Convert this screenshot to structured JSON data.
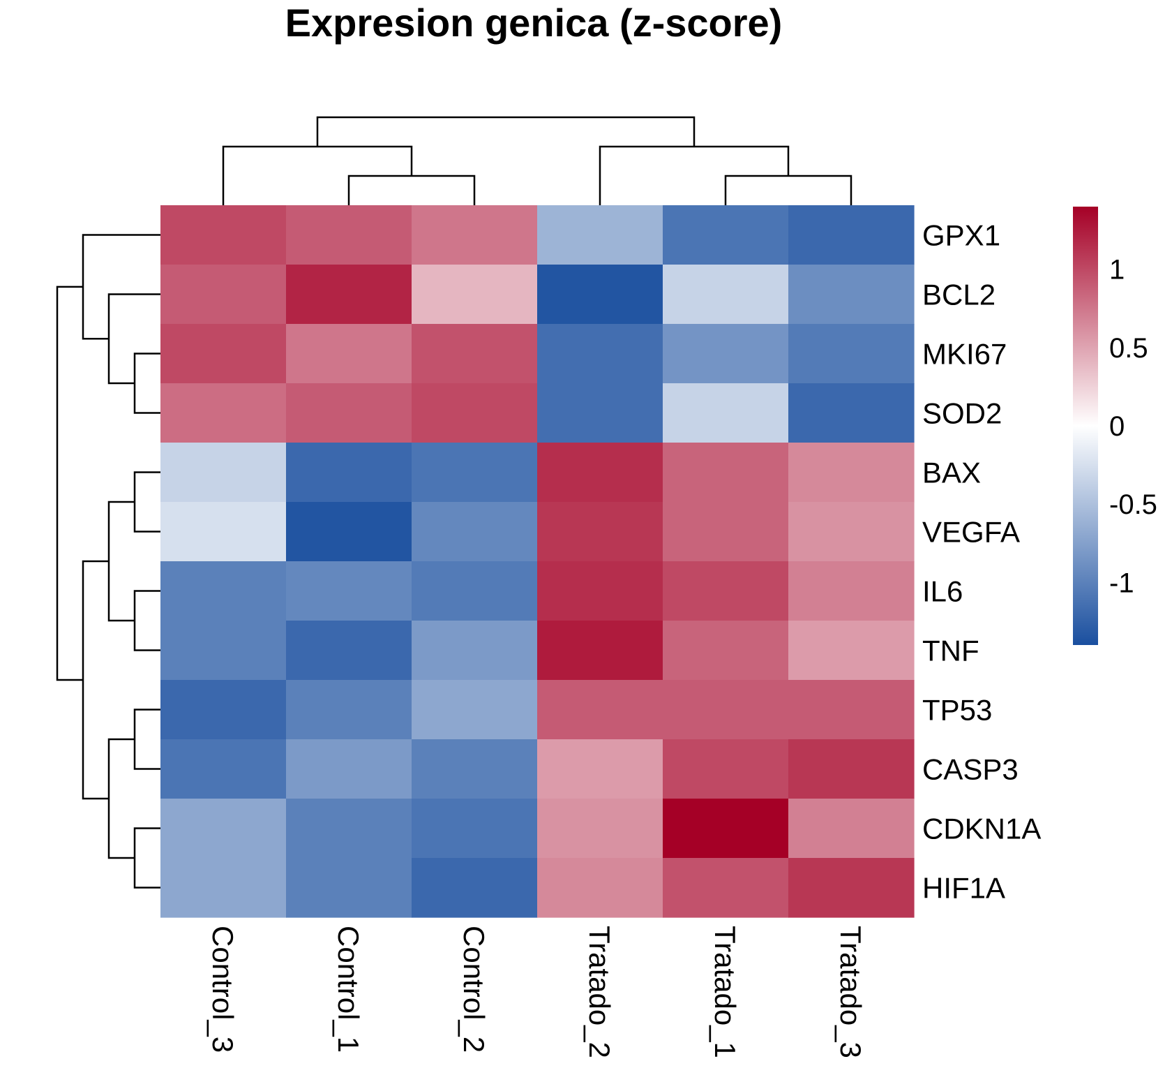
{
  "chart_data": {
    "type": "heatmap",
    "title": "Expresion genica (z-score)",
    "columns": [
      "Control_3",
      "Control_1",
      "Control_2",
      "Tratado_2",
      "Tratado_1",
      "Tratado_3"
    ],
    "rows": [
      "GPX1",
      "BCL2",
      "MKI67",
      "SOD2",
      "BAX",
      "VEGFA",
      "IL6",
      "TNF",
      "TP53",
      "CASP3",
      "CDKN1A",
      "HIF1A"
    ],
    "values": [
      [
        1.0,
        0.9,
        0.75,
        -0.6,
        -1.1,
        -1.2
      ],
      [
        0.9,
        1.2,
        0.4,
        -1.35,
        -0.35,
        -0.9
      ],
      [
        1.0,
        0.75,
        0.95,
        -1.15,
        -0.85,
        -1.05
      ],
      [
        0.8,
        0.9,
        1.0,
        -1.15,
        -0.35,
        -1.2
      ],
      [
        -0.35,
        -1.2,
        -1.1,
        1.15,
        0.85,
        0.65
      ],
      [
        -0.25,
        -1.35,
        -0.95,
        1.1,
        0.85,
        0.6
      ],
      [
        -1.0,
        -0.95,
        -1.05,
        1.15,
        1.0,
        0.7
      ],
      [
        -1.0,
        -1.2,
        -0.8,
        1.25,
        0.85,
        0.55
      ],
      [
        -1.2,
        -1.0,
        -0.7,
        0.9,
        0.9,
        0.9
      ],
      [
        -1.1,
        -0.8,
        -1.0,
        0.55,
        1.0,
        1.1
      ],
      [
        -0.7,
        -1.0,
        -1.1,
        0.6,
        1.4,
        0.7
      ],
      [
        -0.7,
        -1.0,
        -1.2,
        0.65,
        0.95,
        1.1
      ]
    ],
    "color_scale": {
      "min": -1.4,
      "max": 1.4,
      "low": "#1a4f9f",
      "mid": "#ffffff",
      "high": "#a50026"
    },
    "legend_ticks": [
      1,
      0.5,
      0,
      -0.5,
      -1
    ],
    "legend_tick_labels": [
      "1",
      "0.5",
      "0",
      "-0.5",
      "-1"
    ],
    "legend_position": "right",
    "column_dendrogram": [
      [
        1,
        2
      ],
      [
        4,
        5
      ],
      [
        0,
        1
      ],
      [
        3,
        4
      ],
      [
        0,
        3
      ]
    ],
    "row_dendrogram": [
      [
        2,
        3
      ],
      [
        1,
        2
      ],
      [
        0,
        1
      ],
      [
        6,
        7
      ],
      [
        4,
        5
      ],
      [
        4,
        6
      ],
      [
        8,
        9
      ],
      [
        10,
        11
      ],
      [
        8,
        10
      ],
      [
        4,
        8
      ],
      [
        0,
        4
      ]
    ]
  }
}
